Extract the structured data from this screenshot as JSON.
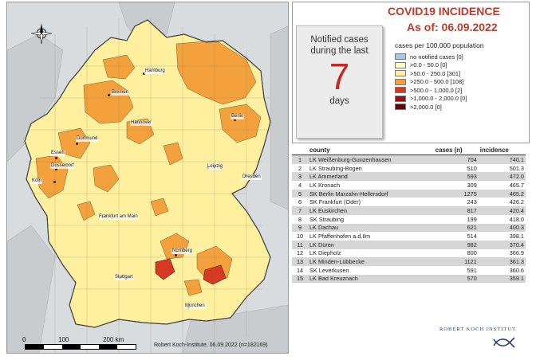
{
  "title": {
    "line1": "COVID19 INCIDENCE",
    "line2": "As of: 06.09.2022"
  },
  "period_panel": {
    "text_top_line1": "Notified cases",
    "text_top_line2": "during the last",
    "days_value": "7",
    "text_bottom": "days"
  },
  "legend": {
    "caption": "cases per 100,000 population",
    "items": [
      {
        "label": "no notified cases [0]",
        "color": "#a8c8e8"
      },
      {
        "label": ">0.0 - 50.0 [0]",
        "color": "#ffffc6"
      },
      {
        "label": ">50.0 - 250.0 [301]",
        "color": "#fff0a0"
      },
      {
        "label": ">250.0 - 500.0 [108]",
        "color": "#f3a13d"
      },
      {
        "label": ">500.0 - 1,000.0 [2]",
        "color": "#d63a22"
      },
      {
        "label": ">1,000.0 - 2,000.0 [0]",
        "color": "#9b1111"
      },
      {
        "label": ">2,000.0 [0]",
        "color": "#5c0a0a"
      }
    ]
  },
  "table": {
    "headers": {
      "rank": "",
      "county": "county",
      "cases": "cases (n)",
      "incidence": "incidence"
    },
    "rows": [
      {
        "rank": "1",
        "county": "LK Weißenburg-Gunzenhausen",
        "cases": "704",
        "incidence": "740.1"
      },
      {
        "rank": "2",
        "county": "LK Straubing-Bogen",
        "cases": "510",
        "incidence": "501.3"
      },
      {
        "rank": "3",
        "county": "LK Ammerland",
        "cases": "593",
        "incidence": "472.0"
      },
      {
        "rank": "4",
        "county": "LK Kronach",
        "cases": "309",
        "incidence": "465.7"
      },
      {
        "rank": "5",
        "county": "SK Berlin Marzahn-Hellersdorf",
        "cases": "1275",
        "incidence": "465.2"
      },
      {
        "rank": "6",
        "county": "SK Frankfurt (Oder)",
        "cases": "243",
        "incidence": "426.2"
      },
      {
        "rank": "7",
        "county": "LK Euskirchen",
        "cases": "817",
        "incidence": "420.4"
      },
      {
        "rank": "8",
        "county": "SK Straubing",
        "cases": "199",
        "incidence": "418.0"
      },
      {
        "rank": "9",
        "county": "LK Dachau",
        "cases": "621",
        "incidence": "400.3"
      },
      {
        "rank": "10",
        "county": "LK Pfaffenhofen a.d.Ilm",
        "cases": "514",
        "incidence": "398.1"
      },
      {
        "rank": "11",
        "county": "LK Düren",
        "cases": "982",
        "incidence": "370.4"
      },
      {
        "rank": "12",
        "county": "LK Diepholz",
        "cases": "800",
        "incidence": "366.9"
      },
      {
        "rank": "13",
        "county": "LK Minden-Lübbecke",
        "cases": "1121",
        "incidence": "361.3"
      },
      {
        "rank": "14",
        "county": "SK Leverkusen",
        "cases": "591",
        "incidence": "360.6"
      },
      {
        "rank": "15",
        "county": "LK Bad Kreuznach",
        "cases": "570",
        "incidence": "359.1"
      }
    ]
  },
  "map": {
    "cities": [
      "Hamburg",
      "Bremen",
      "Hannover",
      "Berlin",
      "Dortmund",
      "Essen",
      "Düsseldorf",
      "Köln",
      "Leipzig",
      "Dresden",
      "Frankfurt am Main",
      "Nürnberg",
      "Stuttgart",
      "München"
    ],
    "scale_labels": [
      "0",
      "100",
      "200 km"
    ],
    "credit": "Robert Koch-Institute, 06.09.2022 (n=182169)",
    "colors": {
      "neighbor": "#c8cbce",
      "sea": "#d9dcde",
      "low": "#fff0a0",
      "mid": "#f3a13d",
      "high": "#d63a22"
    }
  },
  "branding": {
    "institute": "ROBERT KOCH INSTITUT"
  }
}
